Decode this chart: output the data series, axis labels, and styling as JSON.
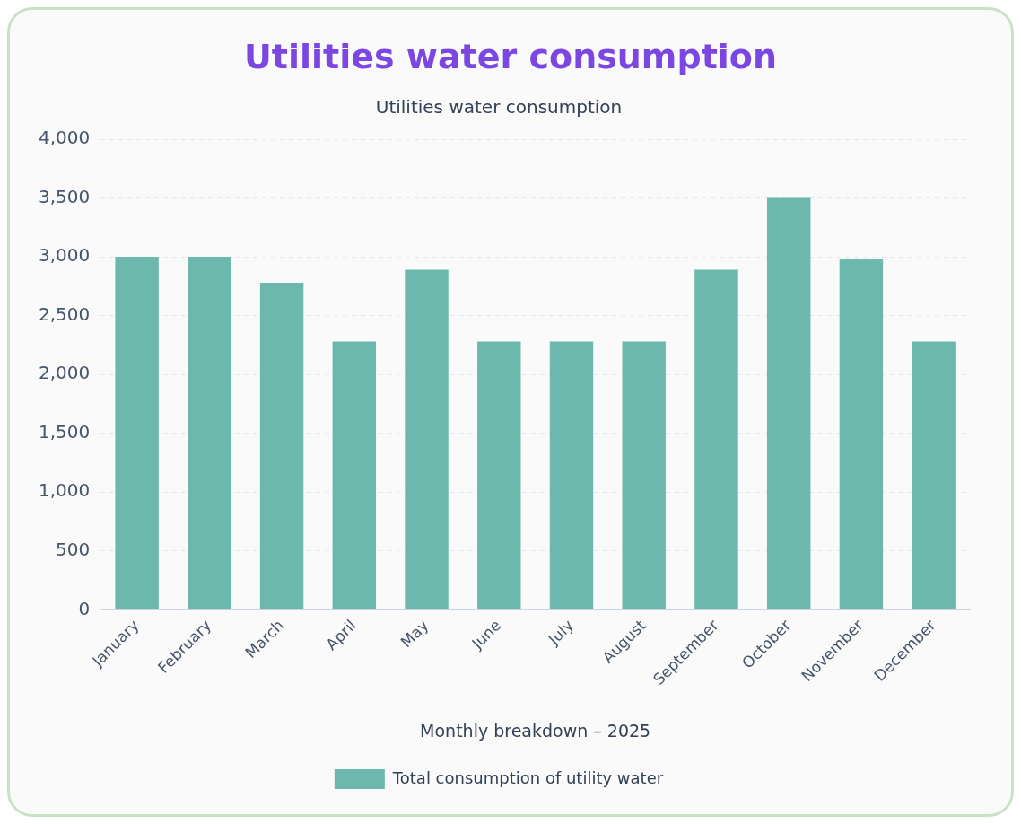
{
  "chart_data": {
    "type": "bar",
    "title": "Utilities water consumption",
    "subtitle": "Utilities water consumption",
    "xlabel": "Monthly breakdown – 2025",
    "categories": [
      "January",
      "February",
      "March",
      "April",
      "May",
      "June",
      "July",
      "August",
      "September",
      "October",
      "November",
      "December"
    ],
    "series": [
      {
        "name": "Total consumption of utility water",
        "color": "#6db8ac",
        "values": [
          3000,
          3000,
          2780,
          2280,
          2890,
          2280,
          2280,
          2280,
          2890,
          3500,
          2980,
          2280
        ]
      }
    ],
    "ylim": [
      0,
      4000
    ],
    "yticks": [
      0,
      {
        "value": 500,
        "label": "500"
      },
      {
        "value": 1000,
        "label": "1,000"
      },
      {
        "value": 1500,
        "label": "1,500"
      },
      {
        "value": 2000,
        "label": "2,000"
      },
      {
        "value": 2500,
        "label": "2,500"
      },
      {
        "value": 3000,
        "label": "3,000"
      },
      {
        "value": 3500,
        "label": "3,500"
      },
      {
        "value": 4000,
        "label": "4,000"
      }
    ],
    "grid": "y",
    "legend": "bottom"
  }
}
